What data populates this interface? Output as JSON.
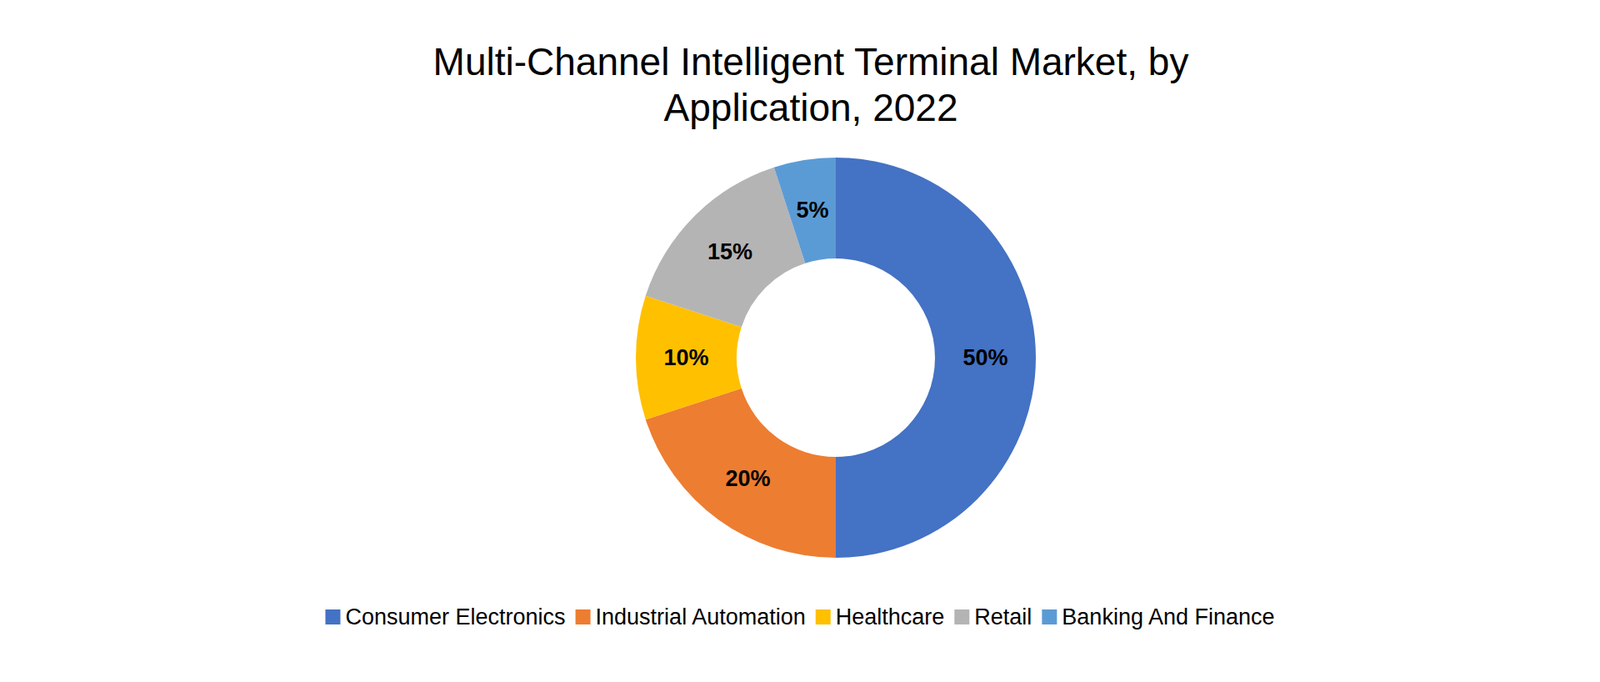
{
  "chart_data": {
    "type": "pie",
    "title": "Multi-Channel Intelligent Terminal Market, by Application, 2022",
    "categories": [
      "Consumer Electronics",
      "Industrial Automation",
      "Healthcare",
      "Retail",
      "Banking And Finance"
    ],
    "values": [
      50,
      20,
      10,
      15,
      5
    ],
    "value_labels": [
      "50%",
      "20%",
      "10%",
      "15%",
      "5%"
    ],
    "colors": [
      "#4472c4",
      "#ed7d31",
      "#ffc000",
      "#b4b4b4",
      "#5b9bd5"
    ],
    "data_labels": true,
    "legend": "bottom"
  }
}
